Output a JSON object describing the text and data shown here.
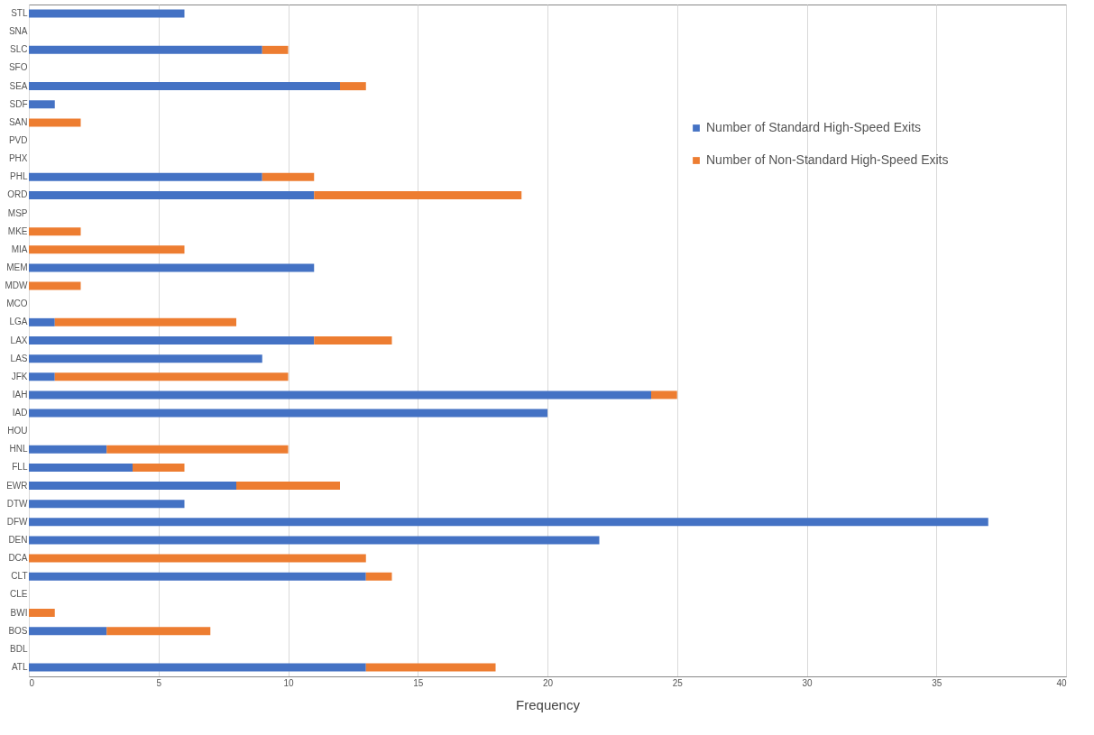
{
  "chart_data": {
    "type": "bar",
    "orientation": "horizontal",
    "stacked": true,
    "xlabel": "Frequency",
    "categories": [
      "STL",
      "SNA",
      "SLC",
      "SFO",
      "SEA",
      "SDF",
      "SAN",
      "PVD",
      "PHX",
      "PHL",
      "ORD",
      "MSP",
      "MKE",
      "MIA",
      "MEM",
      "MDW",
      "MCO",
      "LGA",
      "LAX",
      "LAS",
      "JFK",
      "IAH",
      "IAD",
      "HOU",
      "HNL",
      "FLL",
      "EWR",
      "DTW",
      "DFW",
      "DEN",
      "DCA",
      "CLT",
      "CLE",
      "BWI",
      "BOS",
      "BDL",
      "ATL"
    ],
    "series": [
      {
        "name": "Number of Standard High-Speed Exits",
        "color": "#4472c4",
        "values": [
          6,
          0,
          9,
          0,
          12,
          1,
          0,
          0,
          0,
          9,
          11,
          0,
          0,
          0,
          11,
          0,
          0,
          1,
          11,
          9,
          1,
          24,
          20,
          0,
          3,
          4,
          8,
          6,
          37,
          22,
          0,
          13,
          0,
          0,
          3,
          0,
          13
        ]
      },
      {
        "name": "Number of Non-Standard High-Speed Exits",
        "color": "#ed7d31",
        "values": [
          0,
          0,
          1,
          0,
          1,
          0,
          2,
          0,
          0,
          2,
          8,
          0,
          2,
          6,
          0,
          2,
          0,
          7,
          3,
          0,
          9,
          1,
          0,
          0,
          7,
          2,
          4,
          0,
          0,
          0,
          13,
          1,
          0,
          1,
          4,
          0,
          5
        ]
      }
    ],
    "xlim": [
      0,
      40
    ],
    "xticks": [
      0,
      5,
      10,
      15,
      20,
      25,
      30,
      35,
      40
    ],
    "grid": "x",
    "legend": "top right"
  }
}
